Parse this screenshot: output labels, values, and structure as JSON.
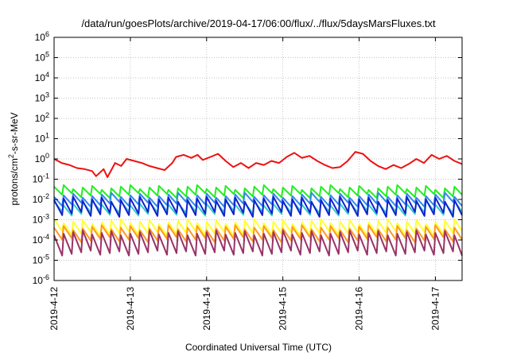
{
  "chart_data": {
    "type": "line",
    "title": "/data/run/goesPlots/archive/2019-04-17/06:00/flux/../flux/5daysMarsFluxes.txt",
    "xlabel": "Coordinated Universal Time (UTC)",
    "ylabel": {
      "main": "protons/cm",
      "sup": "2",
      "rest": "-s-sr-MeV"
    },
    "yscale": "log",
    "ylim_exp": [
      -6,
      6
    ],
    "y_tick_labels": [
      {
        "base": "10",
        "exp": "-6"
      },
      {
        "base": "10",
        "exp": "-5"
      },
      {
        "base": "10",
        "exp": "-4"
      },
      {
        "base": "10",
        "exp": "-3"
      },
      {
        "base": "10",
        "exp": "-2"
      },
      {
        "base": "10",
        "exp": "-1"
      },
      {
        "base": "10",
        "exp": "0"
      },
      {
        "base": "10",
        "exp": "1"
      },
      {
        "base": "10",
        "exp": "2"
      },
      {
        "base": "10",
        "exp": "3"
      },
      {
        "base": "10",
        "exp": "4"
      },
      {
        "base": "10",
        "exp": "5"
      },
      {
        "base": "10",
        "exp": "6"
      }
    ],
    "xlim": [
      "2019-04-12 00:00",
      "2019-04-17 08:24"
    ],
    "x_tick_labels": [
      "2019-4-12",
      "2019-4-13",
      "2019-4-14",
      "2019-4-15",
      "2019-4-16",
      "2019-4-17"
    ],
    "grid": true,
    "series": [
      {
        "color": "#ee1111",
        "x_days": [
          0,
          0.1,
          0.2,
          0.3,
          0.4,
          0.5,
          0.55,
          0.65,
          0.7,
          0.8,
          0.88,
          0.95,
          1.05,
          1.15,
          1.25,
          1.35,
          1.45,
          1.55,
          1.6,
          1.7,
          1.8,
          1.88,
          1.95,
          2.05,
          2.15,
          2.25,
          2.35,
          2.45,
          2.55,
          2.65,
          2.75,
          2.85,
          2.95,
          3.05,
          3.15,
          3.25,
          3.35,
          3.45,
          3.55,
          3.65,
          3.75,
          3.85,
          3.95,
          4.05,
          4.15,
          4.25,
          4.35,
          4.45,
          4.55,
          4.65,
          4.75,
          4.85,
          4.95,
          5.05,
          5.15,
          5.25,
          5.35
        ],
        "log10_values": [
          0.0,
          -0.2,
          -0.3,
          -0.45,
          -0.5,
          -0.6,
          -0.85,
          -0.5,
          -0.9,
          -0.2,
          -0.35,
          0.0,
          -0.1,
          -0.2,
          -0.35,
          -0.45,
          -0.55,
          -0.2,
          0.1,
          0.2,
          0.05,
          0.2,
          -0.05,
          0.1,
          0.25,
          -0.1,
          -0.4,
          -0.2,
          -0.45,
          -0.2,
          -0.3,
          -0.1,
          -0.2,
          0.1,
          0.3,
          0.05,
          0.15,
          -0.1,
          -0.3,
          -0.45,
          -0.4,
          -0.1,
          0.35,
          0.25,
          -0.1,
          -0.35,
          -0.5,
          -0.3,
          -0.45,
          -0.25,
          0.0,
          -0.2,
          0.2,
          0.0,
          0.15,
          -0.1,
          -0.25
        ]
      },
      {
        "color": "#22ee22",
        "base_exp": -1.55,
        "amp": 0.4,
        "period": 0.125
      },
      {
        "color": "#3388ee",
        "base_exp": -1.95,
        "amp": 0.45,
        "period": 0.125
      },
      {
        "color": "#33cccc",
        "base_exp": -2.35,
        "amp": 0.5,
        "period": 0.125
      },
      {
        "color": "#1122cc",
        "base_exp": -2.25,
        "amp": 0.75,
        "period": 0.125
      },
      {
        "color": "#ffff33",
        "base_exp": -3.3,
        "amp": 0.6,
        "period": 0.125
      },
      {
        "color": "#ff9922",
        "base_exp": -3.6,
        "amp": 0.6,
        "period": 0.125
      },
      {
        "color": "#993366",
        "base_exp": -4.0,
        "amp": 1.0,
        "period": 0.125
      }
    ]
  }
}
